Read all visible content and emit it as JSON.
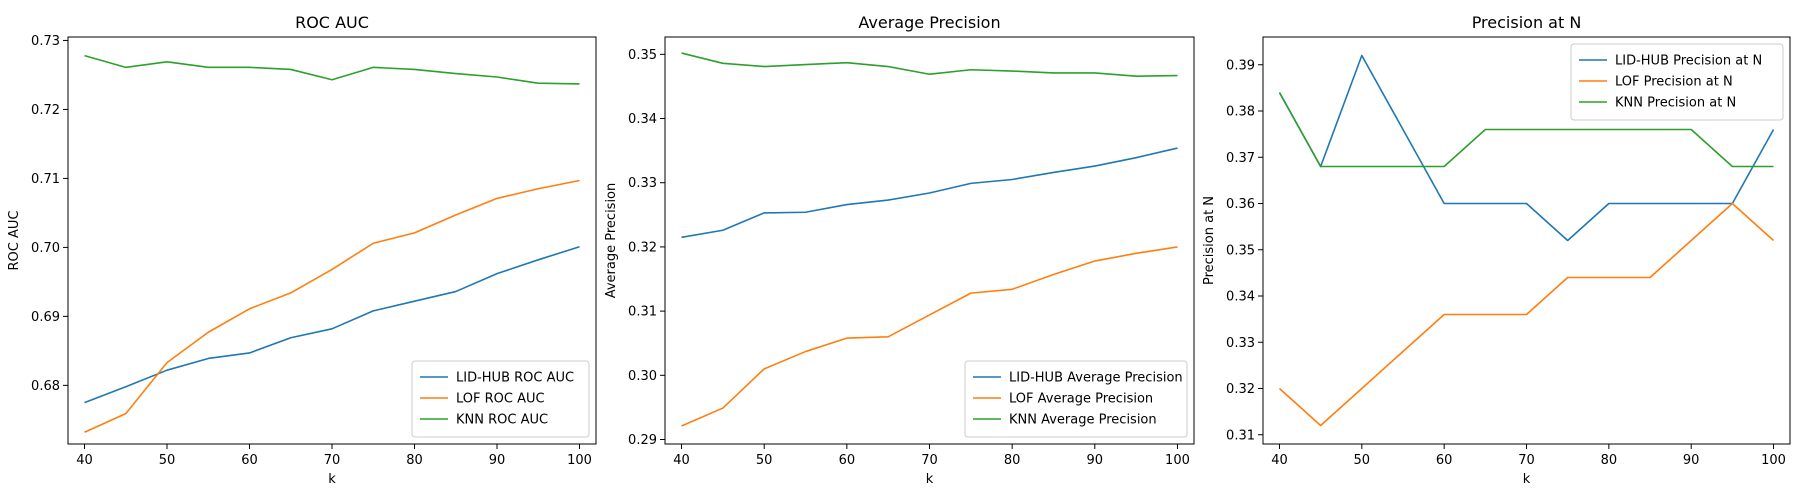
{
  "chart_data": [
    {
      "type": "line",
      "title": "ROC AUC",
      "xlabel": "k",
      "ylabel": "ROC AUC",
      "x": [
        40,
        45,
        50,
        55,
        60,
        65,
        70,
        75,
        80,
        85,
        90,
        95,
        100
      ],
      "xlim": [
        38,
        102
      ],
      "ylim": [
        0.6715,
        0.7305
      ],
      "xticks": [
        40,
        50,
        60,
        70,
        80,
        90,
        100
      ],
      "yticks": [
        0.68,
        0.69,
        0.7,
        0.71,
        0.72,
        0.73
      ],
      "ytick_labels": [
        "0.68",
        "0.69",
        "0.70",
        "0.71",
        "0.72",
        "0.73"
      ],
      "legend_position": "lower-right",
      "series": [
        {
          "name": "LID-HUB ROC AUC",
          "color": "#1f77b4",
          "values": [
            0.6775,
            0.6798,
            0.6822,
            0.6839,
            0.6847,
            0.6869,
            0.6882,
            0.6908,
            0.6922,
            0.6936,
            0.6962,
            0.6982,
            0.7001
          ]
        },
        {
          "name": "LOF ROC AUC",
          "color": "#ff7f0e",
          "values": [
            0.6732,
            0.6759,
            0.6833,
            0.6877,
            0.6911,
            0.6934,
            0.6968,
            0.7006,
            0.7021,
            0.7047,
            0.7071,
            0.7085,
            0.7097
          ]
        },
        {
          "name": "KNN ROC AUC",
          "color": "#2ca02c",
          "values": [
            0.7278,
            0.7261,
            0.7269,
            0.7261,
            0.7261,
            0.7258,
            0.7243,
            0.7261,
            0.7258,
            0.7252,
            0.7247,
            0.7238,
            0.7237
          ]
        }
      ]
    },
    {
      "type": "line",
      "title": "Average Precision",
      "xlabel": "k",
      "ylabel": "Average Precision",
      "x": [
        40,
        45,
        50,
        55,
        60,
        65,
        70,
        75,
        80,
        85,
        90,
        95,
        100
      ],
      "xlim": [
        38,
        102
      ],
      "ylim": [
        0.2893,
        0.3527
      ],
      "xticks": [
        40,
        50,
        60,
        70,
        80,
        90,
        100
      ],
      "yticks": [
        0.29,
        0.3,
        0.31,
        0.32,
        0.33,
        0.34,
        0.35
      ],
      "ytick_labels": [
        "0.29",
        "0.30",
        "0.31",
        "0.32",
        "0.33",
        "0.34",
        "0.35"
      ],
      "legend_position": "lower-right",
      "series": [
        {
          "name": "LID-HUB Average Precision",
          "color": "#1f77b4",
          "values": [
            0.3215,
            0.3226,
            0.3253,
            0.3254,
            0.3266,
            0.3273,
            0.3284,
            0.3299,
            0.3305,
            0.3316,
            0.3326,
            0.3339,
            0.3354
          ]
        },
        {
          "name": "LOF Average Precision",
          "color": "#ff7f0e",
          "values": [
            0.2921,
            0.2949,
            0.301,
            0.3037,
            0.3058,
            0.306,
            0.3094,
            0.3128,
            0.3134,
            0.3157,
            0.3178,
            0.319,
            0.32
          ]
        },
        {
          "name": "KNN Average Precision",
          "color": "#2ca02c",
          "values": [
            0.3502,
            0.3486,
            0.3481,
            0.3484,
            0.3487,
            0.3481,
            0.3469,
            0.3476,
            0.3474,
            0.3471,
            0.3471,
            0.3466,
            0.3467
          ]
        }
      ]
    },
    {
      "type": "line",
      "title": "Precision at N",
      "xlabel": "k",
      "ylabel": "Precision at N",
      "x": [
        40,
        45,
        50,
        55,
        60,
        65,
        70,
        75,
        80,
        85,
        90,
        95,
        100
      ],
      "xlim": [
        38,
        102
      ],
      "ylim": [
        0.308,
        0.396
      ],
      "xticks": [
        40,
        50,
        60,
        70,
        80,
        90,
        100
      ],
      "yticks": [
        0.31,
        0.32,
        0.33,
        0.34,
        0.35,
        0.36,
        0.37,
        0.38,
        0.39
      ],
      "ytick_labels": [
        "0.31",
        "0.32",
        "0.33",
        "0.34",
        "0.35",
        "0.36",
        "0.37",
        "0.38",
        "0.39"
      ],
      "legend_position": "upper-right",
      "series": [
        {
          "name": "LID-HUB Precision at N",
          "color": "#1f77b4",
          "values": [
            0.384,
            0.368,
            0.392,
            0.376,
            0.36,
            0.36,
            0.36,
            0.352,
            0.36,
            0.36,
            0.36,
            0.36,
            0.376
          ]
        },
        {
          "name": "LOF Precision at N",
          "color": "#ff7f0e",
          "values": [
            0.32,
            0.312,
            0.32,
            0.328,
            0.336,
            0.336,
            0.336,
            0.344,
            0.344,
            0.344,
            0.352,
            0.36,
            0.352
          ]
        },
        {
          "name": "KNN Precision at N",
          "color": "#2ca02c",
          "values": [
            0.384,
            0.368,
            0.368,
            0.368,
            0.368,
            0.376,
            0.376,
            0.376,
            0.376,
            0.376,
            0.376,
            0.368,
            0.368
          ]
        }
      ]
    }
  ]
}
